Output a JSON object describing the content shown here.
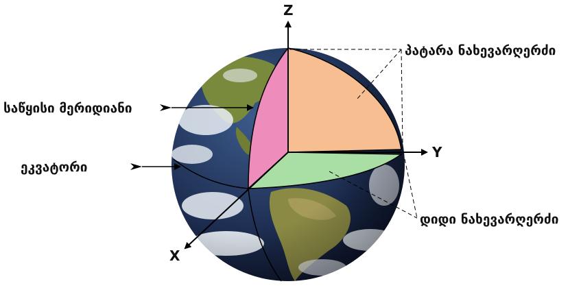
{
  "axes": {
    "z": "Z",
    "y": "Y",
    "x": "X"
  },
  "labels": {
    "small_semi_axis": "პატარა ნახევარღერძი",
    "prime_meridian": "საწყისი მერიდიანი",
    "equator": "ეკვატორი",
    "large_semi_axis": "დიდი ნახევარღერძი"
  },
  "colors": {
    "upper_quadrant": "#F7BE92",
    "meridian_plane": "#EE8CBC",
    "equatorial_plane": "#A9DFA4",
    "ocean": "#1E2E52",
    "land": "#7A8A3C",
    "clouds": "#E9EEF4",
    "line": "#000000"
  },
  "icons": {
    "label_pointer": "arrow-right-icon"
  }
}
